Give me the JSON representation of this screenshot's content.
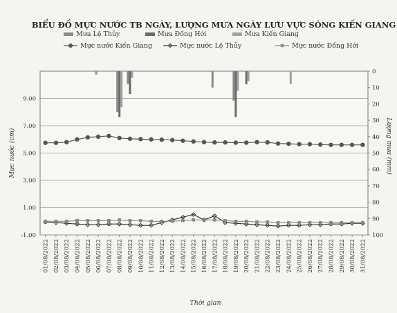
{
  "chart_data": {
    "type": "line",
    "title": "BIỂU ĐỒ MỰC NƯỚC TB NGÀY, LƯỢNG MƯA NGÀY LƯU VỰC SÔNG KIẾN GIANG",
    "xlabel": "Thời gian",
    "ylabel": "Mực nước (cm)",
    "y2label": "Lượng mưa (mm)",
    "ylim": [
      -1,
      11
    ],
    "y2lim": [
      100,
      0
    ],
    "yticks": [
      "-1.00",
      "1.00",
      "3.00",
      "5.00",
      "7.00",
      "9.00"
    ],
    "y2ticks": [
      "0",
      "10",
      "20",
      "30",
      "40",
      "50",
      "60",
      "70",
      "80",
      "90",
      "100"
    ],
    "grid": true,
    "legend": "top",
    "categories": [
      "01/08/2022",
      "02/08/2022",
      "03/08/2022",
      "04/08/2022",
      "05/08/2022",
      "06/08/2022",
      "07/08/2022",
      "08/08/2022",
      "09/08/2022",
      "10/08/2022",
      "11/08/2022",
      "12/08/2022",
      "13/08/2022",
      "14/08/2022",
      "15/08/2022",
      "16/08/2022",
      "17/08/2022",
      "18/08/2022",
      "19/08/2022",
      "20/08/2022",
      "21/08/2022",
      "22/08/2022",
      "23/08/2022",
      "24/08/2022",
      "25/08/2022",
      "26/08/2022",
      "27/08/2022",
      "28/08/2022",
      "29/08/2022",
      "30/08/2022",
      "31/08/2022"
    ],
    "bar_series": [
      {
        "name": "Mưa Lệ Thủy",
        "color": "#8a8a8a",
        "values": [
          0,
          0,
          0,
          0,
          0,
          2,
          0,
          25,
          8,
          0,
          0,
          0,
          0,
          0,
          0,
          0,
          10,
          0,
          18,
          0,
          0,
          0,
          0,
          0,
          0,
          0,
          0,
          0,
          0,
          0,
          0
        ]
      },
      {
        "name": "Mưa Đồng Hới",
        "color": "#6a6a6a",
        "values": [
          0,
          0,
          0,
          0,
          0,
          0,
          0,
          28,
          14,
          0,
          0,
          0,
          0,
          0,
          0,
          0,
          0,
          0,
          28,
          8,
          0,
          0,
          0,
          0,
          0,
          0,
          0,
          0,
          0,
          0,
          0
        ]
      },
      {
        "name": "Mưa Kiến Giang",
        "color": "#a0a0a0",
        "values": [
          0,
          0,
          0,
          0,
          0,
          0,
          0,
          22,
          4,
          0,
          0,
          0,
          0,
          0,
          0,
          0,
          0,
          0,
          12,
          6,
          0,
          0,
          0,
          8,
          0,
          0,
          0,
          0,
          0,
          0,
          0
        ]
      }
    ],
    "series": [
      {
        "name": "Mực nước Kiến Giang",
        "color": "#555555",
        "marker": "circle",
        "values": [
          5.75,
          5.75,
          5.8,
          6.0,
          6.15,
          6.2,
          6.25,
          6.1,
          6.05,
          6.02,
          6.0,
          5.98,
          5.95,
          5.9,
          5.85,
          5.8,
          5.78,
          5.78,
          5.76,
          5.76,
          5.8,
          5.78,
          5.7,
          5.68,
          5.65,
          5.65,
          5.62,
          5.6,
          5.6,
          5.6,
          5.6
        ]
      },
      {
        "name": "Mực nước Lệ Thủy",
        "color": "#333333",
        "marker": "diamond",
        "values": [
          -0.05,
          -0.1,
          -0.15,
          -0.2,
          -0.25,
          -0.25,
          -0.2,
          -0.2,
          -0.25,
          -0.3,
          -0.3,
          -0.1,
          0.1,
          0.3,
          0.5,
          0.1,
          0.4,
          -0.1,
          -0.15,
          -0.2,
          -0.25,
          -0.3,
          -0.35,
          -0.3,
          -0.3,
          -0.25,
          -0.25,
          -0.2,
          -0.2,
          -0.15,
          -0.15
        ]
      },
      {
        "name": "Mực nước Đồng Hới",
        "color": "#888888",
        "marker": "square",
        "values": [
          0.0,
          0.0,
          0.0,
          0.05,
          0.05,
          0.05,
          0.05,
          0.1,
          0.05,
          0.05,
          0.0,
          0.0,
          0.0,
          0.05,
          0.1,
          0.1,
          0.1,
          0.05,
          0.0,
          0.0,
          -0.05,
          -0.05,
          -0.1,
          -0.1,
          -0.1,
          -0.1,
          -0.1,
          -0.1,
          -0.1,
          -0.1,
          -0.1
        ]
      }
    ]
  }
}
